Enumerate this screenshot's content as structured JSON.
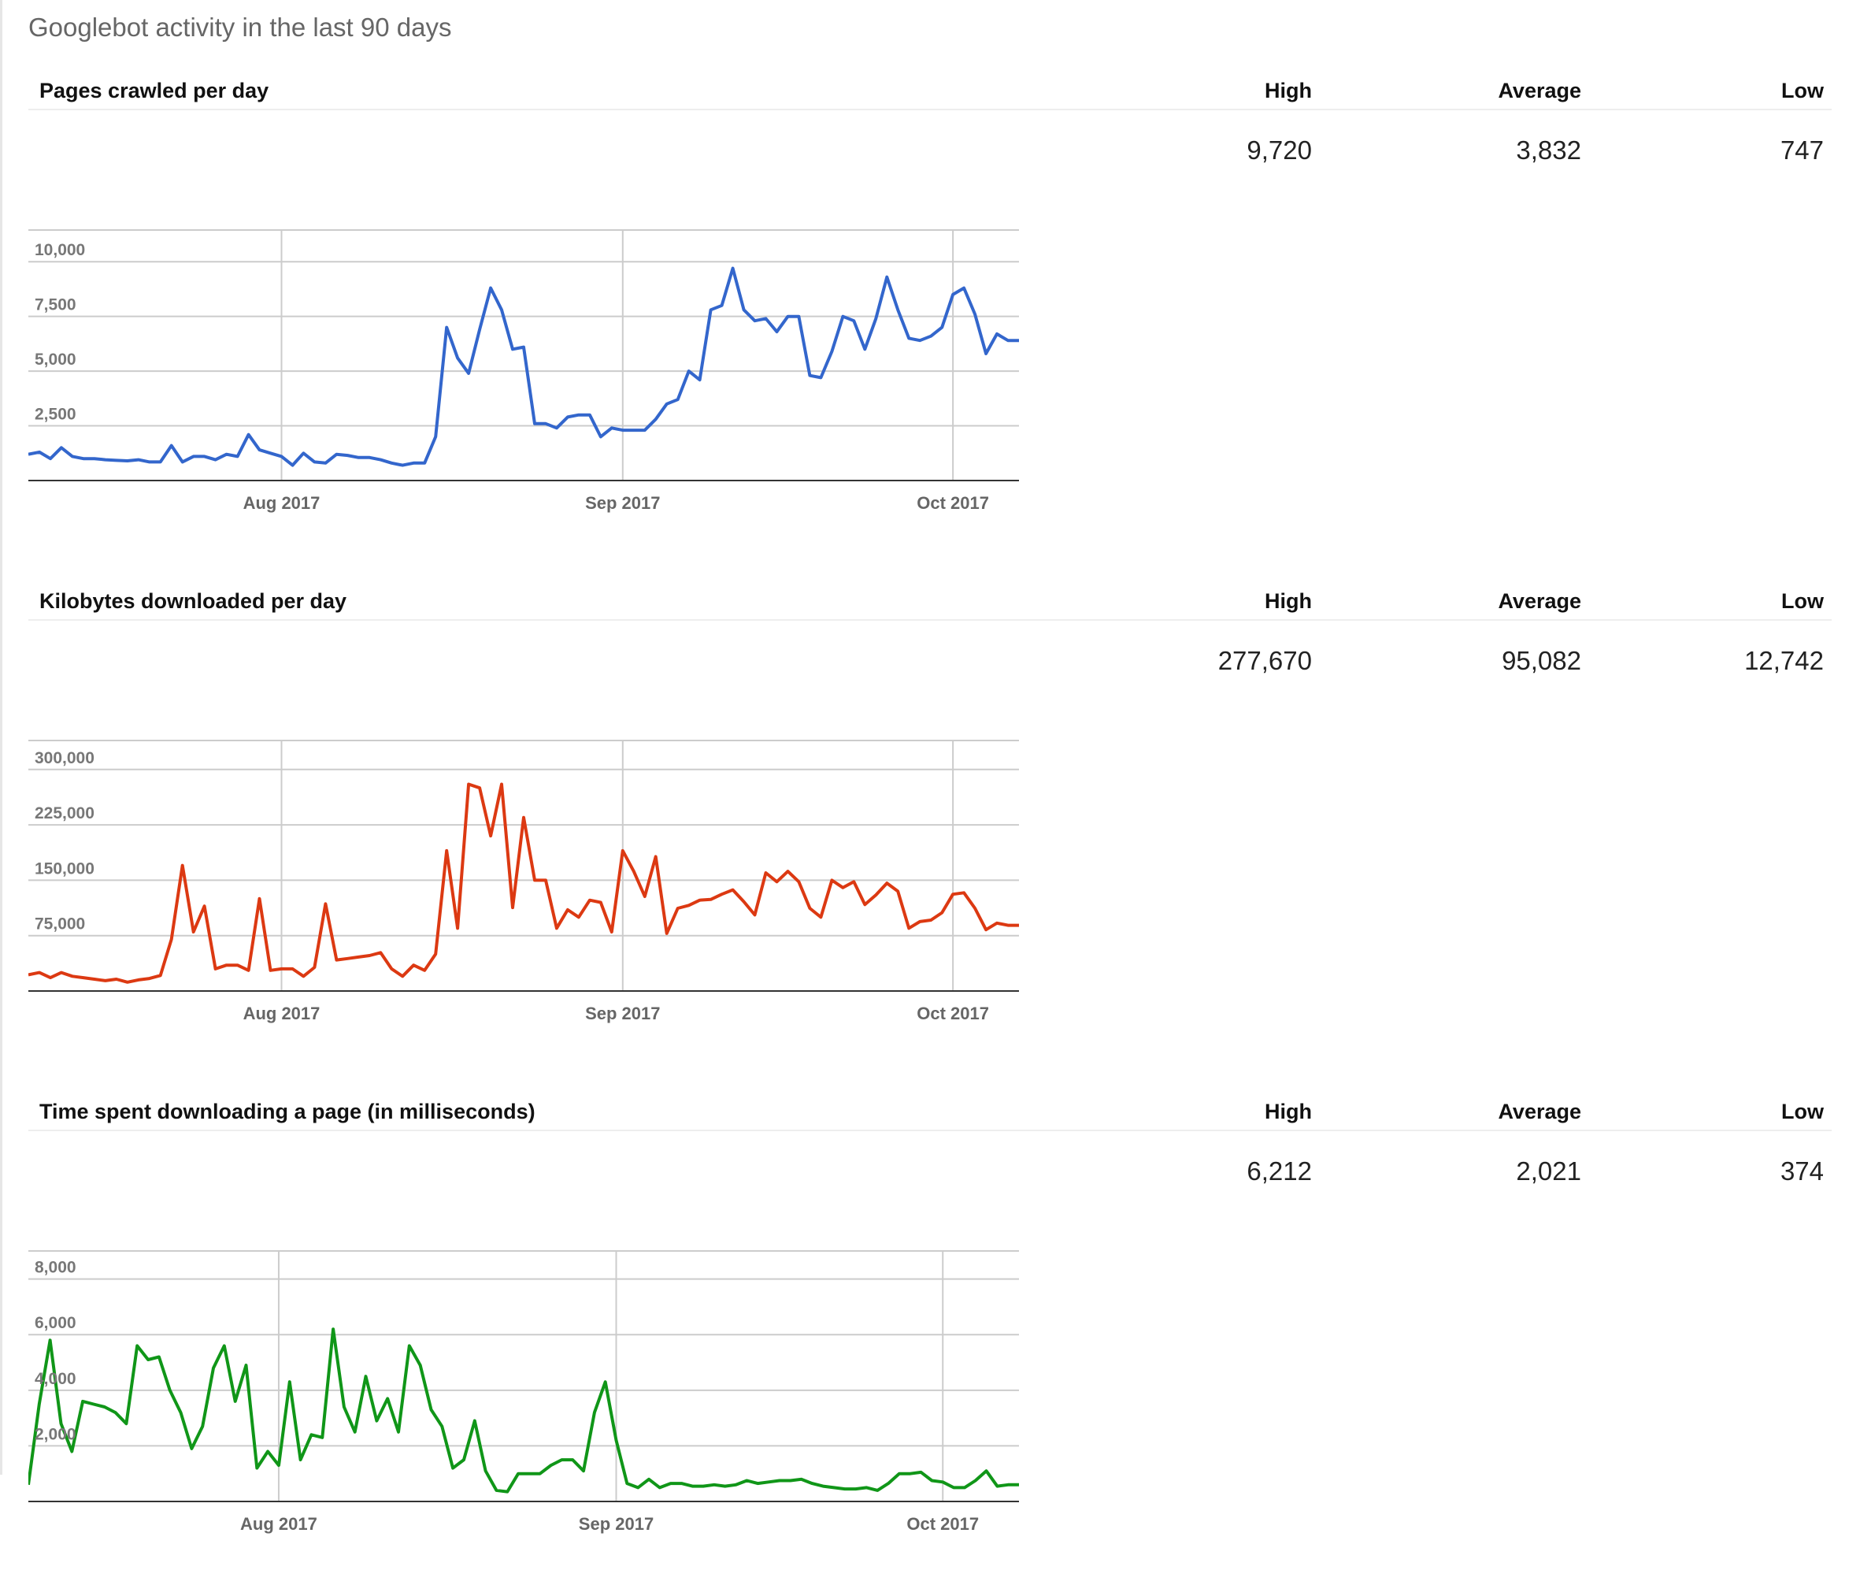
{
  "page_title": "Googlebot activity in the last 90 days",
  "columns": {
    "high": "High",
    "average": "Average",
    "low": "Low"
  },
  "chart_data": [
    {
      "type": "line",
      "title": "Pages crawled per day",
      "color": "#3366cc",
      "xlabel": "",
      "ylabel": "",
      "stats": {
        "high": "9,720",
        "average": "3,832",
        "low": "747"
      },
      "ylim": [
        0,
        10800
      ],
      "yticks": [
        2500,
        5000,
        7500,
        10000
      ],
      "ytick_labels": [
        "2,500",
        "5,000",
        "7,500",
        "10,000"
      ],
      "xticks": [
        {
          "index": 23,
          "label": "Aug 2017"
        },
        {
          "index": 54,
          "label": "Sep 2017"
        },
        {
          "index": 84,
          "label": "Oct 2017"
        }
      ],
      "grid": true,
      "legend": "none",
      "values": [
        1200,
        1300,
        1000,
        1500,
        1100,
        1000,
        1000,
        950,
        920,
        900,
        950,
        850,
        850,
        1600,
        850,
        1100,
        1100,
        950,
        1200,
        1100,
        2100,
        1400,
        1250,
        1100,
        700,
        1250,
        850,
        800,
        1200,
        1150,
        1050,
        1050,
        950,
        800,
        700,
        800,
        800,
        2000,
        7000,
        5600,
        4900,
        6900,
        8800,
        7800,
        6000,
        6100,
        2600,
        2600,
        2400,
        2900,
        3000,
        3000,
        2000,
        2400,
        2300,
        2300,
        2300,
        2800,
        3500,
        3700,
        5000,
        4600,
        7800,
        8000,
        9700,
        7800,
        7300,
        7400,
        6800,
        7500,
        7500,
        4800,
        4700,
        5900,
        7500,
        7300,
        6000,
        7400,
        9300,
        7800,
        6500,
        6400,
        6600,
        7000,
        8500,
        8800,
        7600,
        5800,
        6700,
        6400,
        6400
      ]
    },
    {
      "type": "line",
      "title": "Kilobytes downloaded per day",
      "color": "#dc3912",
      "xlabel": "",
      "ylabel": "",
      "stats": {
        "high": "277,670",
        "average": "95,082",
        "low": "12,742"
      },
      "ylim": [
        0,
        320000
      ],
      "yticks": [
        75000,
        150000,
        225000,
        300000
      ],
      "ytick_labels": [
        "75,000",
        "150,000",
        "225,000",
        "300,000"
      ],
      "xticks": [
        {
          "index": 23,
          "label": "Aug 2017"
        },
        {
          "index": 54,
          "label": "Sep 2017"
        },
        {
          "index": 84,
          "label": "Oct 2017"
        }
      ],
      "grid": true,
      "legend": "none",
      "values": [
        22000,
        25000,
        18000,
        25000,
        20000,
        18000,
        16000,
        14000,
        16000,
        12000,
        15000,
        17000,
        21000,
        70000,
        170000,
        80000,
        115000,
        30000,
        35000,
        35000,
        28000,
        125000,
        28000,
        30000,
        30000,
        20000,
        32000,
        118000,
        42000,
        44000,
        46000,
        48000,
        52000,
        30000,
        20000,
        35000,
        28000,
        50000,
        190000,
        85000,
        280000,
        275000,
        210000,
        280000,
        113000,
        235000,
        150000,
        150000,
        85000,
        110000,
        100000,
        123000,
        120000,
        80000,
        190000,
        162000,
        128000,
        182000,
        78000,
        112000,
        116000,
        123000,
        124000,
        131000,
        137000,
        121000,
        103000,
        160000,
        148000,
        162000,
        148000,
        112000,
        100000,
        150000,
        140000,
        148000,
        117000,
        130000,
        146000,
        135000,
        85000,
        94000,
        96000,
        106000,
        131000,
        133000,
        112000,
        83000,
        92000,
        89000,
        89000
      ]
    },
    {
      "type": "line",
      "title": "Time spent downloading a page (in milliseconds)",
      "color": "#109618",
      "xlabel": "",
      "ylabel": "",
      "stats": {
        "high": "6,212",
        "average": "2,021",
        "low": "374"
      },
      "ylim": [
        0,
        8500
      ],
      "yticks": [
        2000,
        4000,
        6000,
        8000
      ],
      "ytick_labels": [
        "2,000",
        "4,000",
        "6,000",
        "8,000"
      ],
      "xticks": [
        {
          "index": 23,
          "label": "Aug 2017"
        },
        {
          "index": 54,
          "label": "Sep 2017"
        },
        {
          "index": 84,
          "label": "Oct 2017"
        }
      ],
      "grid": true,
      "legend": "none",
      "values": [
        600,
        3500,
        5800,
        2800,
        1800,
        3600,
        3500,
        3400,
        3200,
        2800,
        5600,
        5100,
        5200,
        4000,
        3200,
        1900,
        2700,
        4800,
        5600,
        3600,
        4900,
        1200,
        1800,
        1300,
        4300,
        1500,
        2400,
        2300,
        6200,
        3400,
        2500,
        4500,
        2900,
        3700,
        2500,
        5600,
        4900,
        3300,
        2700,
        1200,
        1500,
        2900,
        1100,
        400,
        350,
        1000,
        1000,
        1000,
        1300,
        1500,
        1500,
        1100,
        3200,
        4300,
        2200,
        650,
        500,
        800,
        500,
        650,
        650,
        550,
        550,
        600,
        550,
        600,
        750,
        650,
        700,
        750,
        750,
        800,
        650,
        550,
        500,
        450,
        450,
        500,
        400,
        650,
        1000,
        1000,
        1050,
        750,
        700,
        500,
        500,
        750,
        1100,
        550,
        600,
        600
      ]
    }
  ]
}
